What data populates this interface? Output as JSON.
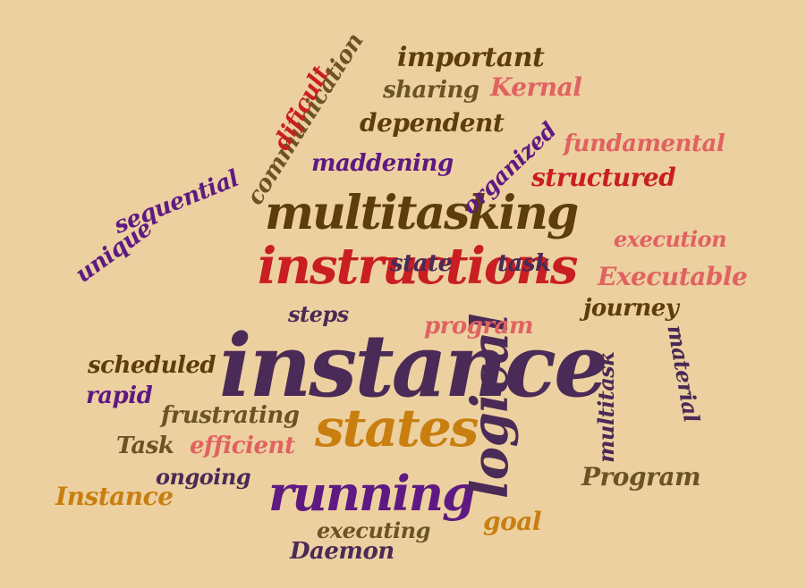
{
  "palette": {
    "background": "#EDD09F",
    "dark_purple": "#4A2A56",
    "purple": "#5E1A82",
    "brown": "#5C3D0B",
    "olive_brown": "#6B5323",
    "crimson": "#C81E24",
    "coral": "#E06262",
    "orange": "#C87F10"
  },
  "words": [
    {
      "text": "instance",
      "color": "#4A2A56"
    },
    {
      "text": "instructions",
      "color": "#C81E24"
    },
    {
      "text": "multitasking",
      "color": "#5C3D0B"
    },
    {
      "text": "states",
      "color": "#C87F10"
    },
    {
      "text": "running",
      "color": "#5E1A82"
    },
    {
      "text": "logical",
      "color": "#4A2A56"
    },
    {
      "text": "important",
      "color": "#5C3D0B"
    },
    {
      "text": "communication",
      "color": "#6B5323"
    },
    {
      "text": "dificult",
      "color": "#C81E24"
    },
    {
      "text": "sharing",
      "color": "#6B5323"
    },
    {
      "text": "Kernal",
      "color": "#E06262"
    },
    {
      "text": "dependent",
      "color": "#5C3D0B"
    },
    {
      "text": "fundamental",
      "color": "#E06262"
    },
    {
      "text": "organized",
      "color": "#5E1A82"
    },
    {
      "text": "maddening",
      "color": "#5E1A82"
    },
    {
      "text": "structured",
      "color": "#C81E24"
    },
    {
      "text": "sequential",
      "color": "#5E1A82"
    },
    {
      "text": "unique",
      "color": "#5E1A82"
    },
    {
      "text": "execution",
      "color": "#E06262"
    },
    {
      "text": "state",
      "color": "#4A2A56"
    },
    {
      "text": "task",
      "color": "#4A2A56"
    },
    {
      "text": "Executable",
      "color": "#E06262"
    },
    {
      "text": "journey",
      "color": "#5C3D0B"
    },
    {
      "text": "steps",
      "color": "#4A2A56"
    },
    {
      "text": "program",
      "color": "#E06262"
    },
    {
      "text": "material",
      "color": "#4A2A56"
    },
    {
      "text": "multitask",
      "color": "#4A2A56"
    },
    {
      "text": "scheduled",
      "color": "#5C3D0B"
    },
    {
      "text": "rapid",
      "color": "#5E1A82"
    },
    {
      "text": "frustrating",
      "color": "#6B5323"
    },
    {
      "text": "Task",
      "color": "#6B5323"
    },
    {
      "text": "efficient",
      "color": "#E06262"
    },
    {
      "text": "ongoing",
      "color": "#4A2A56"
    },
    {
      "text": "Program",
      "color": "#6B5323"
    },
    {
      "text": "Instance",
      "color": "#C87F10"
    },
    {
      "text": "executing",
      "color": "#6B5323"
    },
    {
      "text": "goal",
      "color": "#C87F10"
    },
    {
      "text": "Daemon",
      "color": "#4A2A56"
    }
  ]
}
